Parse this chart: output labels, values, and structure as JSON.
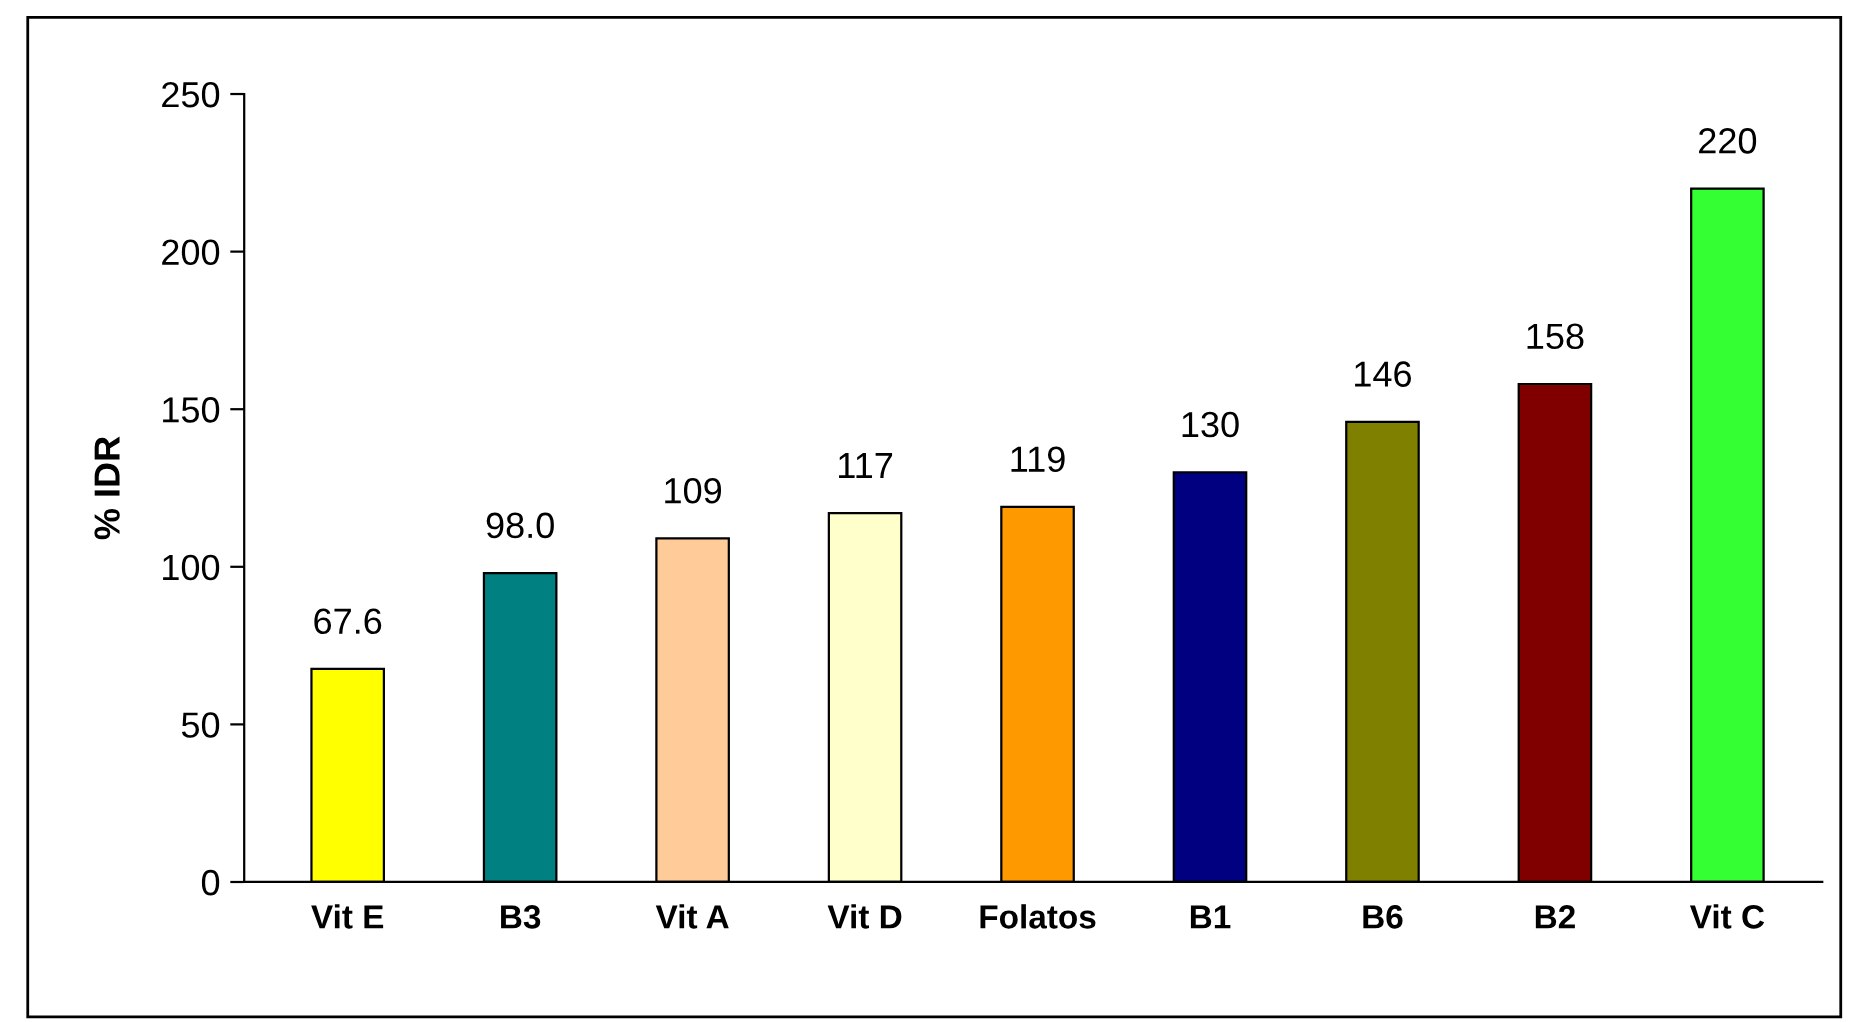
{
  "chart_data": {
    "type": "bar",
    "ylabel": "% IDR",
    "categories": [
      "Vit E",
      "B3",
      "Vit A",
      "Vit D",
      "Folatos",
      "B1",
      "B6",
      "B2",
      "Vit C"
    ],
    "values": [
      67.6,
      98.0,
      109,
      117,
      119,
      130,
      146,
      158,
      220
    ],
    "colors": [
      "#ffff00",
      "#008080",
      "#ffcc99",
      "#ffffcc",
      "#ff9900",
      "#000080",
      "#808000",
      "#800000",
      "#33ff33"
    ],
    "ylim": [
      0,
      250
    ],
    "yticks": [
      0,
      50,
      100,
      150,
      200,
      250
    ],
    "value_labels": [
      "67.6",
      "98.0",
      "109",
      "117",
      "119",
      "130",
      "146",
      "158",
      "220"
    ],
    "grid": false,
    "legend": false
  }
}
